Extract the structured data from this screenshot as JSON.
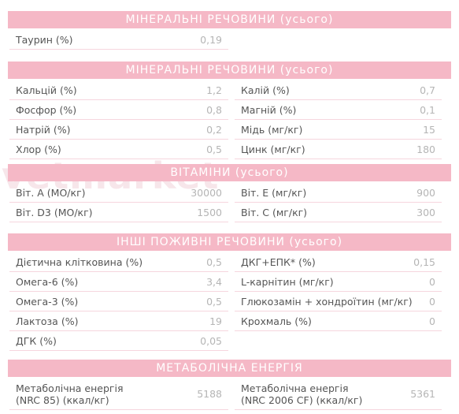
{
  "watermark": "vetmarket",
  "sections": [
    {
      "title": "МІНЕРАЛЬНІ РЕЧОВИНИ (усього)",
      "rows": [
        [
          {
            "label": "Таурин (%)",
            "value": "0,19"
          }
        ]
      ]
    },
    {
      "title": "МІНЕРАЛЬНІ РЕЧОВИНИ (усього)",
      "rows": [
        [
          {
            "label": "Кальцій (%)",
            "value": "1,2"
          },
          {
            "label": "Калій (%)",
            "value": "0,7"
          }
        ],
        [
          {
            "label": "Фосфор (%)",
            "value": "0,8"
          },
          {
            "label": "Магній (%)",
            "value": "0,1"
          }
        ],
        [
          {
            "label": "Натрій (%)",
            "value": "0,2"
          },
          {
            "label": "Мідь (мг/кг)",
            "value": "15"
          }
        ],
        [
          {
            "label": "Хлор (%)",
            "value": "0,5"
          },
          {
            "label": "Цинк (мг/кг)",
            "value": "180"
          }
        ]
      ]
    },
    {
      "title": "ВІТАМІНИ (усього)",
      "rows": [
        [
          {
            "label": "Віт. А (МО/кг)",
            "value": "30000"
          },
          {
            "label": "Віт. Е (мг/кг)",
            "value": "900"
          }
        ],
        [
          {
            "label": "Віт. D3 (МО/кг)",
            "value": "1500"
          },
          {
            "label": "Віт. С (мг/кг)",
            "value": "300"
          }
        ]
      ]
    },
    {
      "title": "ІНШІ ПОЖИВНІ РЕЧОВИНИ (усього)",
      "rows": [
        [
          {
            "label": "Дієтична клітковина (%)",
            "value": "0,5"
          },
          {
            "label": "ДКГ+ЕПК* (%)",
            "value": "0,15"
          }
        ],
        [
          {
            "label": "Омега-6 (%)",
            "value": "3,4"
          },
          {
            "label": "L-карнітин (мг/кг)",
            "value": "0"
          }
        ],
        [
          {
            "label": "Омега-3 (%)",
            "value": "0,5"
          },
          {
            "label": "Глюкозамін + хондроїтин (мг/кг)",
            "value": "0"
          }
        ],
        [
          {
            "label": "Лактоза (%)",
            "value": "19"
          },
          {
            "label": "Крохмаль (%)",
            "value": "0"
          }
        ],
        [
          {
            "label": "ДГК (%)",
            "value": "0,05"
          }
        ]
      ]
    },
    {
      "title": "МЕТАБОЛІЧНА ЕНЕРГІЯ",
      "rows": [
        [
          {
            "label": [
              "Метаболічна енергія",
              "(NRC 85) (ккал/кг)"
            ],
            "value": "5188"
          },
          {
            "label": [
              "Метаболічна енергія",
              "(NRC 2006 CF) (ккал/кг)"
            ],
            "value": "5361"
          }
        ]
      ]
    }
  ]
}
